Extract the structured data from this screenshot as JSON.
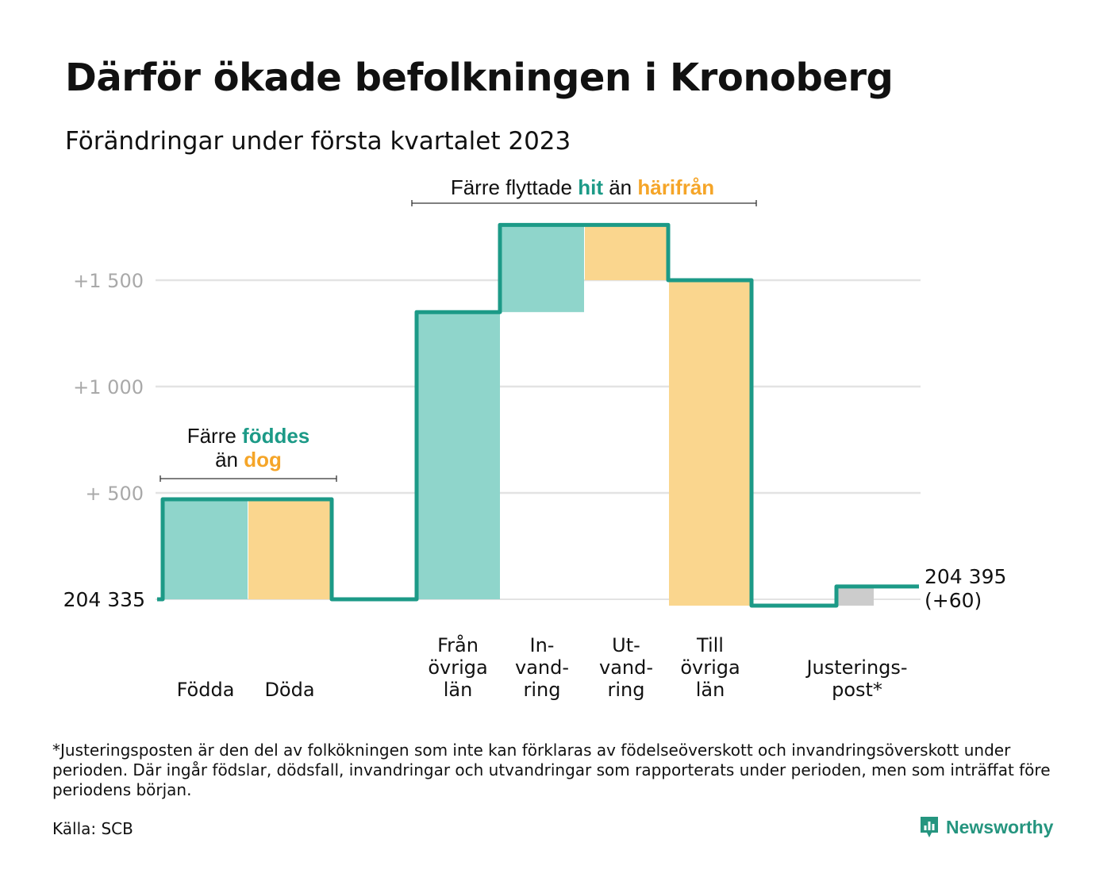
{
  "title": "Därför ökade befolkningen i Kronoberg",
  "subtitle": "Förändringar under första kvartalet 2023",
  "colors": {
    "inflow": "#8fd5cb",
    "outflow": "#fad68e",
    "adjustment": "#cccccc",
    "line": "#1c9a87",
    "highlight_teal": "#1c9a87",
    "highlight_orange": "#f5a528",
    "grid": "#e3e3e3",
    "tick_text": "#a9a9a9"
  },
  "chart_data": {
    "type": "waterfall",
    "start_value": 204335,
    "start_label": "204 335",
    "end_value": 204395,
    "end_label": "204 395",
    "end_change_label": "(+60)",
    "ylim": [
      0,
      1800
    ],
    "yticks": [
      {
        "value": 500,
        "label": "+ 500"
      },
      {
        "value": 1000,
        "label": "+1 000"
      },
      {
        "value": 1500,
        "label": "+1 500"
      }
    ],
    "grid": true,
    "steps": [
      {
        "label_lines": [
          "Födda"
        ],
        "change": 470,
        "kind": "inflow"
      },
      {
        "label_lines": [
          "Döda"
        ],
        "change": -470,
        "kind": "outflow"
      },
      {
        "label_lines": [
          "Från",
          "övriga",
          "län"
        ],
        "change": 1350,
        "kind": "inflow"
      },
      {
        "label_lines": [
          "In-",
          "vand-",
          "ring"
        ],
        "change": 410,
        "kind": "inflow"
      },
      {
        "label_lines": [
          "Ut-",
          "vand-",
          "ring"
        ],
        "change": -260,
        "kind": "outflow"
      },
      {
        "label_lines": [
          "Till",
          "övriga",
          "län"
        ],
        "change": -1530,
        "kind": "outflow"
      },
      {
        "label_lines": [
          "Justerings-",
          "post*"
        ],
        "change": 90,
        "kind": "adjustment"
      }
    ],
    "annotations": [
      {
        "parts": [
          {
            "text": "Färre ",
            "style": "plain"
          },
          {
            "text": "föddes",
            "style": "teal"
          },
          {
            "text": "än ",
            "style": "plain",
            "newline": true
          },
          {
            "text": "dog",
            "style": "orange"
          }
        ]
      },
      {
        "parts": [
          {
            "text": "Färre flyttade ",
            "style": "plain"
          },
          {
            "text": "hit",
            "style": "teal"
          },
          {
            "text": " än ",
            "style": "plain"
          },
          {
            "text": "härifrån",
            "style": "orange"
          }
        ]
      }
    ]
  },
  "footnote": "*Justeringsposten är den del av folkökningen som inte kan förklaras av födelseöverskott och invandringsöverskott under perioden. Där ingår födslar, dödsfall, invandringar och utvandringar som rapporterats under perioden, men som inträffat före periodens början.",
  "source": "Källa: SCB",
  "brand": {
    "name": "Newsworthy",
    "icon": "newsworthy-logo-icon"
  }
}
